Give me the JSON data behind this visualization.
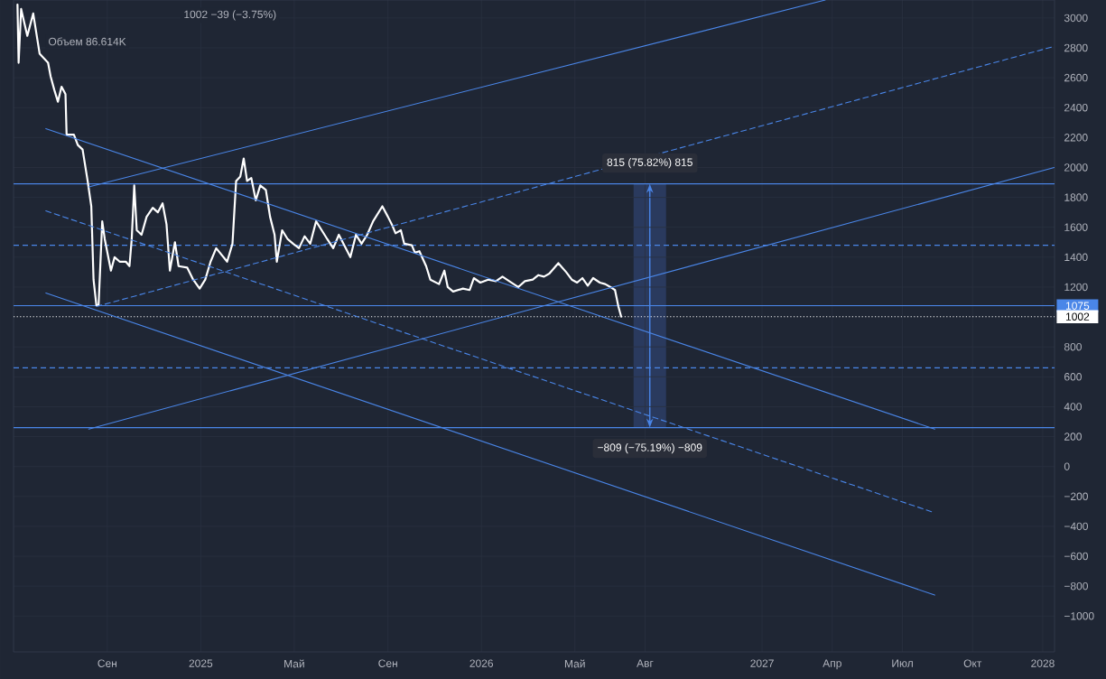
{
  "chart_data": {
    "type": "line",
    "annotations": [
      "1002  −39 (−3.75%)",
      "Объем 86.614K",
      {
        "text": "815 (75.82%) 815",
        "x": 2026.6,
        "y": 1890
      },
      {
        "text": "−809 (−75.19%) −809",
        "x": 2026.6,
        "y": 260
      }
    ],
    "series": [
      {
        "color": "#ffffff",
        "x": [
          2024.347,
          2024.351,
          2024.36,
          2024.382,
          2024.403,
          2024.426,
          2024.456,
          2024.465,
          2024.478,
          2024.491,
          2024.504,
          2024.518,
          2024.522,
          2024.548,
          2024.562,
          2024.579,
          2024.597,
          2024.61,
          2024.618,
          2024.628,
          2024.636,
          2024.649,
          2024.658,
          2024.68,
          2024.693,
          2024.711,
          2024.733,
          2024.746,
          2024.754,
          2024.763,
          2024.772,
          2024.789,
          2024.807,
          2024.829,
          2024.847,
          2024.864,
          2024.878,
          2024.89,
          2024.908,
          2024.921,
          2024.952,
          2024.973,
          2024.996,
          2025.016,
          2025.035,
          2025.055,
          2025.094,
          2025.113,
          2025.126,
          2025.141,
          2025.153,
          2025.165,
          2025.18,
          2025.196,
          2025.212,
          2025.232,
          2025.247,
          2025.263,
          2025.271,
          2025.29,
          2025.31,
          2025.329,
          2025.35,
          2025.37,
          2025.39,
          2025.411,
          2025.431,
          2025.451,
          2025.472,
          2025.492,
          2025.533,
          2025.553,
          2025.573,
          2025.593,
          2025.614,
          2025.647,
          2025.667,
          2025.683,
          2025.694,
          2025.713,
          2025.725,
          2025.752,
          2025.763,
          2025.779,
          2025.803,
          2025.818,
          2025.849,
          2025.868,
          2025.88,
          2025.899,
          2025.934,
          2025.958,
          2025.973,
          2025.996,
          2026.024,
          2026.052,
          2026.075,
          2026.099,
          2026.131,
          2026.155,
          2026.183,
          2026.203,
          2026.223,
          2026.242,
          2026.274,
          2026.302,
          2026.322,
          2026.341,
          2026.36,
          2026.379,
          2026.398,
          2026.422,
          2026.441,
          2026.46,
          2026.476,
          2026.488,
          2026.498
        ],
        "values": [
          3090,
          2700,
          3060,
          2880,
          3030,
          2760,
          2700,
          2610,
          2520,
          2440,
          2540,
          2490,
          2220,
          2220,
          2150,
          2120,
          1910,
          1740,
          1250,
          1080,
          1080,
          1640,
          1520,
          1310,
          1400,
          1370,
          1370,
          1340,
          1520,
          1880,
          1580,
          1550,
          1670,
          1730,
          1700,
          1760,
          1620,
          1310,
          1500,
          1340,
          1330,
          1250,
          1190,
          1250,
          1370,
          1460,
          1370,
          1490,
          1910,
          1940,
          2060,
          1910,
          1930,
          1780,
          1880,
          1850,
          1670,
          1550,
          1370,
          1580,
          1520,
          1490,
          1460,
          1540,
          1490,
          1640,
          1580,
          1520,
          1460,
          1550,
          1400,
          1550,
          1490,
          1550,
          1640,
          1740,
          1670,
          1610,
          1560,
          1580,
          1490,
          1480,
          1430,
          1440,
          1340,
          1250,
          1220,
          1310,
          1200,
          1170,
          1190,
          1180,
          1260,
          1230,
          1250,
          1240,
          1270,
          1240,
          1200,
          1240,
          1250,
          1280,
          1270,
          1290,
          1360,
          1300,
          1250,
          1230,
          1260,
          1210,
          1260,
          1230,
          1220,
          1200,
          1180,
          1070,
          1002
        ]
      },
      {
        "color": "#4a86e8",
        "line_style": "solid",
        "x": [
          2024.601,
          2027.225
        ],
        "values": [
          1870,
          3120
        ]
      },
      {
        "color": "#4a86e8",
        "line_style": "dashed",
        "x": [
          2024.628,
          2028.041
        ],
        "values": [
          1070,
          2810
        ]
      },
      {
        "color": "#4a86e8",
        "line_style": "solid",
        "x": [
          2024.601,
          2028.041
        ],
        "values": [
          250,
          2000
        ]
      },
      {
        "color": "#4a86e8",
        "line_style": "solid",
        "x": [
          2024.448,
          2027.615
        ],
        "values": [
          2260,
          250
        ]
      },
      {
        "color": "#4a86e8",
        "line_style": "dashed",
        "x": [
          2024.448,
          2027.615
        ],
        "values": [
          1710,
          -310
        ]
      },
      {
        "color": "#4a86e8",
        "line_style": "solid",
        "x": [
          2024.448,
          2027.615
        ],
        "values": [
          1160,
          -860
        ]
      }
    ],
    "ref_lines": [
      {
        "axis": "y",
        "value": 1890,
        "color": "#4a86e8",
        "line_style": "solid"
      },
      {
        "axis": "y",
        "value": 1480,
        "color": "#4a86e8",
        "line_style": "dashed"
      },
      {
        "axis": "y",
        "value": 1075,
        "label": "1075",
        "color": "#4a86e8",
        "line_style": "solid"
      },
      {
        "axis": "y",
        "value": 1002,
        "label": "1002",
        "color": "#ffffff",
        "line_style": "dotted"
      },
      {
        "axis": "y",
        "value": 660,
        "color": "#4a86e8",
        "line_style": "dashed"
      },
      {
        "axis": "y",
        "value": 260,
        "color": "#4a86e8",
        "line_style": "solid"
      }
    ],
    "xlim": [
      2024.333,
      2028.042
    ],
    "ylim": [
      -1240,
      3120
    ],
    "xticks": [
      {
        "value": 2024.667,
        "label": "Сен"
      },
      2025,
      {
        "value": 2025.333,
        "label": "Май"
      },
      {
        "value": 2025.667,
        "label": "Сен"
      },
      2026,
      {
        "value": 2026.333,
        "label": "Май"
      },
      {
        "value": 2026.583,
        "label": "Авг"
      },
      2027,
      {
        "value": 2027.25,
        "label": "Апр"
      },
      {
        "value": 2027.5,
        "label": "Июл"
      },
      {
        "value": 2027.75,
        "label": "Окт"
      },
      2028
    ],
    "yticks": [
      {
        "value": -1000,
        "label": "−1000"
      },
      {
        "value": -800,
        "label": "−800"
      },
      {
        "value": -600,
        "label": "−600"
      },
      {
        "value": -400,
        "label": "−400"
      },
      {
        "value": -200,
        "label": "−200"
      },
      0,
      200,
      400,
      600,
      800,
      1200,
      1400,
      1600,
      1800,
      2000,
      2200,
      2400,
      2600,
      2800,
      3000
    ],
    "grid": true,
    "line_style": "solid",
    "marker": "none"
  }
}
